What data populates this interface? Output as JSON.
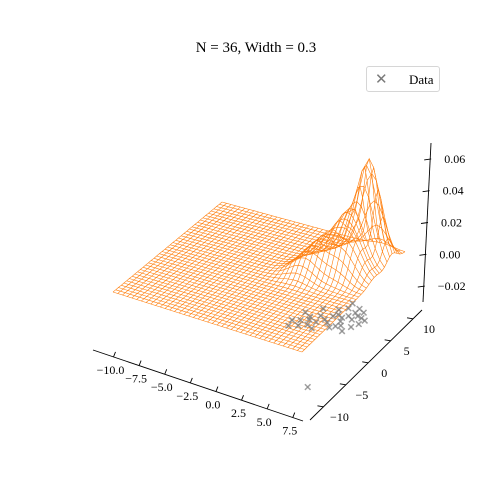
{
  "chart_data": {
    "type": "surface3d",
    "title": "N = 36, Width = 0.3",
    "legend": {
      "entries": [
        "Data"
      ],
      "placement": "upper-right",
      "marker": "x",
      "marker_color": "#808080"
    },
    "surface_color": "#ff7f0e",
    "x_ticks": [
      "−10.0",
      "−7.5",
      "−5.0",
      "−2.5",
      "0.0",
      "2.5",
      "5.0",
      "7.5"
    ],
    "x_tick_values": [
      -10.0,
      -7.5,
      -5.0,
      -2.5,
      0.0,
      2.5,
      5.0,
      7.5
    ],
    "y_ticks": [
      "−10",
      "−5",
      "0",
      "5",
      "10"
    ],
    "y_tick_values": [
      -10,
      -5,
      0,
      5,
      10
    ],
    "z_ticks": [
      "−0.02",
      "0.00",
      "0.02",
      "0.04",
      "0.06"
    ],
    "z_tick_values": [
      -0.02,
      0.0,
      0.02,
      0.04,
      0.06
    ],
    "xlim": [
      -12,
      8.5
    ],
    "ylim": [
      -13,
      12
    ],
    "zlim": [
      -0.03,
      0.07
    ],
    "grid": false,
    "scatter_points": [
      {
        "x": 5.5,
        "y": 6.5
      },
      {
        "x": 6.0,
        "y": 6.0
      },
      {
        "x": 5.2,
        "y": 5.5
      },
      {
        "x": 6.5,
        "y": 5.8
      },
      {
        "x": 4.8,
        "y": 4.8
      },
      {
        "x": 5.8,
        "y": 5.0
      },
      {
        "x": 6.8,
        "y": 4.5
      },
      {
        "x": 5.0,
        "y": 4.0
      },
      {
        "x": 4.2,
        "y": 5.2
      },
      {
        "x": 3.8,
        "y": 6.2
      },
      {
        "x": 4.5,
        "y": 7.0
      },
      {
        "x": 5.5,
        "y": 7.5
      },
      {
        "x": 6.2,
        "y": 7.0
      },
      {
        "x": 3.5,
        "y": 3.5
      },
      {
        "x": 2.8,
        "y": 4.0
      },
      {
        "x": 2.0,
        "y": 3.2
      },
      {
        "x": 3.0,
        "y": 2.5
      },
      {
        "x": 4.0,
        "y": 3.0
      },
      {
        "x": 1.5,
        "y": 2.0
      },
      {
        "x": 2.5,
        "y": 1.5
      },
      {
        "x": 3.2,
        "y": 1.0
      },
      {
        "x": 1.8,
        "y": 0.8
      },
      {
        "x": 0.8,
        "y": 1.5
      },
      {
        "x": 4.6,
        "y": 2.2
      },
      {
        "x": 5.4,
        "y": 3.2
      },
      {
        "x": 6.4,
        "y": 3.5
      },
      {
        "x": 7.0,
        "y": 5.5
      },
      {
        "x": 3.9,
        "y": 4.6
      },
      {
        "x": 2.4,
        "y": 5.5
      },
      {
        "x": 1.2,
        "y": 3.8
      },
      {
        "x": 4.4,
        "y": 8.2
      },
      {
        "x": 5.0,
        "y": 2.8
      },
      {
        "x": 6.0,
        "y": 2.2
      },
      {
        "x": 2.2,
        "y": 2.6
      },
      {
        "x": 1.0,
        "y": 0.2
      },
      {
        "x": 8.0,
        "y": -10.5
      }
    ],
    "peaks": [
      {
        "x": 6.0,
        "y": 8.8,
        "height": 0.062,
        "sigma": 1.2
      },
      {
        "x": 4.8,
        "y": 6.2,
        "height": 0.028,
        "sigma": 1.3
      },
      {
        "x": 3.2,
        "y": 3.8,
        "height": 0.018,
        "sigma": 1.4
      },
      {
        "x": 6.3,
        "y": 4.6,
        "height": 0.014,
        "sigma": 1.2
      },
      {
        "x": 2.0,
        "y": 1.6,
        "height": 0.01,
        "sigma": 1.3
      },
      {
        "x": 5.5,
        "y": 3.0,
        "height": 0.008,
        "sigma": 1.1
      }
    ]
  }
}
